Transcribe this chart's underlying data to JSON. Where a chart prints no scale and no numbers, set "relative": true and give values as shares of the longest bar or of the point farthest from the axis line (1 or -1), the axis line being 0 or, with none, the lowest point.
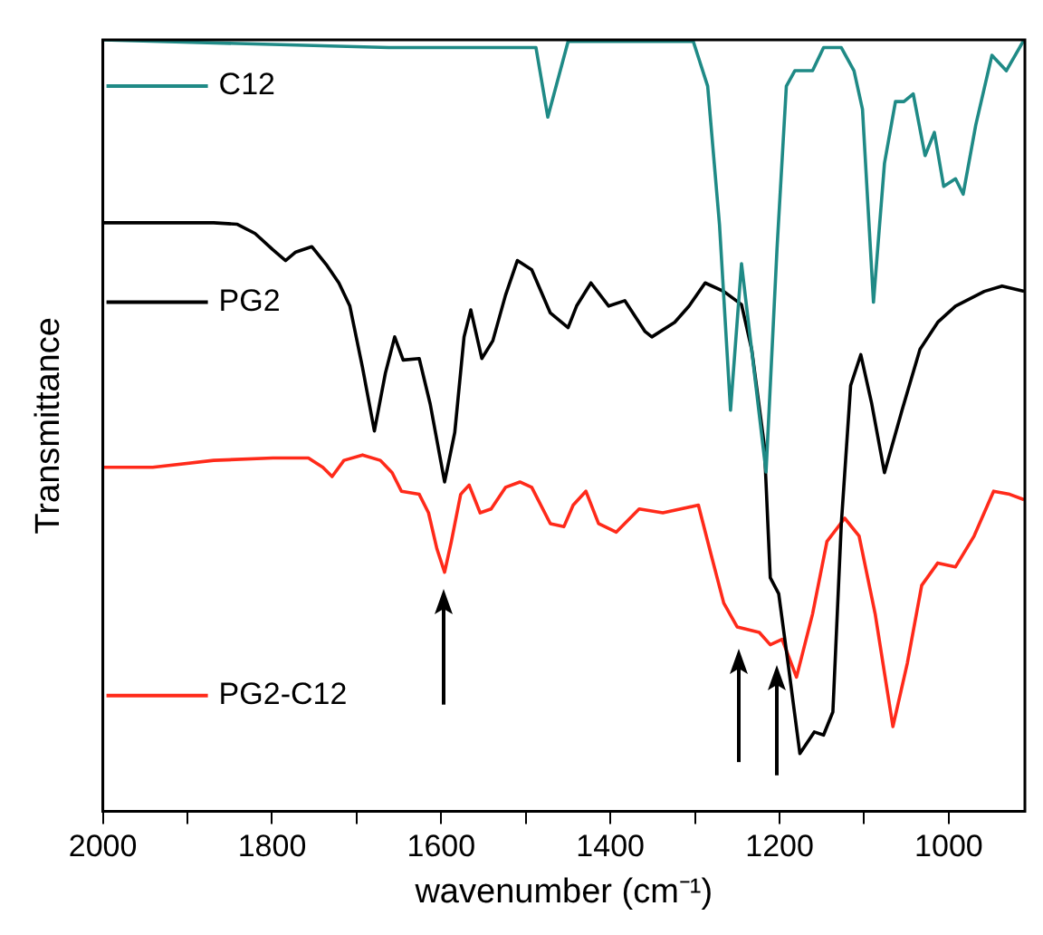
{
  "chart_data": {
    "type": "line",
    "relative": true,
    "xlabel": "wavenumber (cm⁻¹)",
    "ylabel": "Transmittance",
    "xlim": [
      2000,
      910
    ],
    "xticks": [
      2000,
      {
        "value": 1900,
        "label": null
      },
      1800,
      {
        "value": 1700,
        "label": null
      },
      1600,
      {
        "value": 1500,
        "label": null
      },
      1400,
      {
        "value": 1300,
        "label": null
      },
      1200,
      {
        "value": 1100,
        "label": null
      },
      1000
    ],
    "grid": false,
    "legend": "left",
    "marker": "none",
    "series": [
      {
        "name": "C12",
        "color": "#1f8a86",
        "x": [
          2000,
          1662,
          1488,
          1474,
          1450,
          1302,
          1285,
          1271,
          1258,
          1245,
          1216,
          1203,
          1192,
          1182,
          1161,
          1148,
          1127,
          1112,
          1102,
          1089,
          1076,
          1063,
          1053,
          1042,
          1028,
          1017,
          1006,
          992,
          983,
          968,
          949,
          932,
          911
        ],
        "values": [
          1.0,
          0.99,
          0.99,
          0.9,
          0.998,
          0.998,
          0.94,
          0.76,
          0.52,
          0.71,
          0.44,
          0.73,
          0.94,
          0.96,
          0.96,
          0.99,
          0.99,
          0.96,
          0.91,
          0.66,
          0.84,
          0.92,
          0.92,
          0.93,
          0.85,
          0.88,
          0.81,
          0.82,
          0.8,
          0.89,
          0.98,
          0.96,
          1.0
        ]
      },
      {
        "name": "PG2",
        "color": "#000000",
        "x": [
          2000,
          1869,
          1841,
          1820,
          1799,
          1784,
          1772,
          1753,
          1736,
          1721,
          1708,
          1693,
          1679,
          1666,
          1655,
          1645,
          1626,
          1613,
          1596,
          1584,
          1573,
          1565,
          1552,
          1539,
          1524,
          1510,
          1493,
          1471,
          1450,
          1440,
          1423,
          1402,
          1383,
          1359,
          1351,
          1324,
          1307,
          1288,
          1266,
          1245,
          1233,
          1218,
          1211,
          1201,
          1190,
          1176,
          1159,
          1148,
          1137,
          1127,
          1116,
          1104,
          1091,
          1076,
          1055,
          1034,
          1013,
          992,
          958,
          937,
          911
        ],
        "values": [
          0.763,
          0.763,
          0.761,
          0.749,
          0.728,
          0.714,
          0.725,
          0.732,
          0.709,
          0.685,
          0.655,
          0.575,
          0.493,
          0.568,
          0.615,
          0.585,
          0.587,
          0.528,
          0.427,
          0.491,
          0.615,
          0.65,
          0.587,
          0.61,
          0.669,
          0.714,
          0.702,
          0.646,
          0.627,
          0.655,
          0.685,
          0.655,
          0.662,
          0.622,
          0.615,
          0.634,
          0.655,
          0.685,
          0.674,
          0.657,
          0.599,
          0.474,
          0.303,
          0.282,
          0.192,
          0.075,
          0.103,
          0.099,
          0.129,
          0.373,
          0.552,
          0.592,
          0.528,
          0.439,
          0.521,
          0.599,
          0.634,
          0.655,
          0.674,
          0.681,
          0.674
        ]
      },
      {
        "name": "PG2-C12",
        "color": "#ff2a1a",
        "x": [
          2000,
          1941,
          1869,
          1799,
          1757,
          1740,
          1729,
          1715,
          1693,
          1672,
          1658,
          1647,
          1626,
          1615,
          1605,
          1596,
          1588,
          1577,
          1567,
          1554,
          1541,
          1524,
          1507,
          1493,
          1471,
          1455,
          1444,
          1429,
          1414,
          1393,
          1366,
          1338,
          1296,
          1281,
          1266,
          1250,
          1224,
          1211,
          1197,
          1180,
          1161,
          1144,
          1123,
          1106,
          1087,
          1066,
          1049,
          1032,
          1013,
          992,
          970,
          947,
          928,
          911
        ],
        "values": [
          0.446,
          0.446,
          0.455,
          0.458,
          0.458,
          0.446,
          0.434,
          0.455,
          0.462,
          0.455,
          0.439,
          0.415,
          0.411,
          0.387,
          0.34,
          0.31,
          0.35,
          0.411,
          0.423,
          0.387,
          0.392,
          0.42,
          0.427,
          0.42,
          0.373,
          0.369,
          0.397,
          0.415,
          0.373,
          0.362,
          0.392,
          0.387,
          0.397,
          0.333,
          0.27,
          0.239,
          0.232,
          0.216,
          0.223,
          0.174,
          0.256,
          0.35,
          0.38,
          0.357,
          0.256,
          0.11,
          0.192,
          0.293,
          0.322,
          0.317,
          0.357,
          0.415,
          0.411,
          0.404
        ]
      }
    ]
  }
}
